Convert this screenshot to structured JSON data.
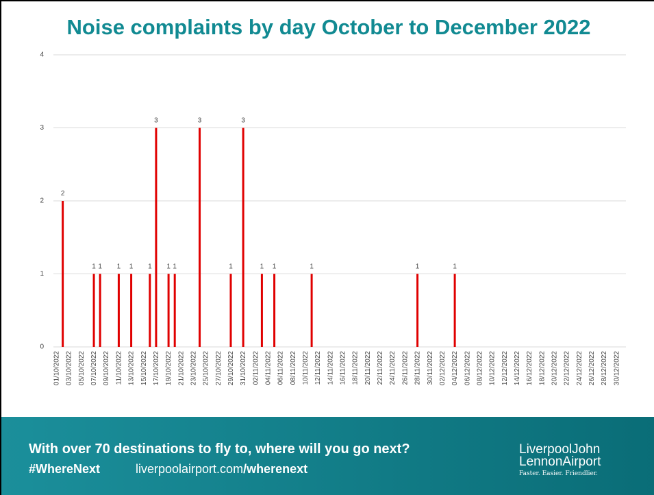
{
  "chart_data": {
    "type": "bar",
    "title": "Noise complaints by day October to December 2022",
    "categories": [
      "01/10/2022",
      null,
      "03/10/2022",
      null,
      "05/10/2022",
      null,
      "07/10/2022",
      null,
      "09/10/2022",
      null,
      "11/10/2022",
      null,
      "13/10/2022",
      null,
      "15/10/2022",
      null,
      "17/10/2022",
      null,
      "19/10/2022",
      null,
      "21/10/2022",
      null,
      "23/10/2022",
      null,
      "25/10/2022",
      null,
      "27/10/2022",
      null,
      "29/10/2022",
      null,
      "31/10/2022",
      null,
      "02/11/2022",
      null,
      "04/11/2022",
      null,
      "06/11/2022",
      null,
      "08/11/2022",
      null,
      "10/11/2022",
      null,
      "12/11/2022",
      null,
      "14/11/2022",
      null,
      "16/11/2022",
      null,
      "18/11/2022",
      null,
      "20/11/2022",
      null,
      "22/11/2022",
      null,
      "24/11/2022",
      null,
      "26/11/2022",
      null,
      "28/11/2022",
      null,
      "30/11/2022",
      null,
      "02/12/2022",
      null,
      "04/12/2022",
      null,
      "06/12/2022",
      null,
      "08/12/2022",
      null,
      "10/12/2022",
      null,
      "12/12/2022",
      null,
      "14/12/2022",
      null,
      "16/12/2022",
      null,
      "18/12/2022",
      null,
      "20/12/2022",
      null,
      "22/12/2022",
      null,
      "24/12/2022",
      null,
      "26/12/2022",
      null,
      "28/12/2022",
      null,
      "30/12/2022",
      null
    ],
    "values": [
      0,
      2,
      0,
      0,
      0,
      0,
      1,
      1,
      0,
      0,
      1,
      0,
      1,
      0,
      0,
      1,
      3,
      0,
      1,
      1,
      0,
      0,
      0,
      3,
      0,
      0,
      0,
      0,
      1,
      0,
      3,
      0,
      0,
      1,
      0,
      1,
      0,
      0,
      0,
      0,
      0,
      1,
      0,
      0,
      0,
      0,
      0,
      0,
      0,
      0,
      0,
      0,
      0,
      0,
      0,
      0,
      0,
      0,
      1,
      0,
      0,
      0,
      0,
      0,
      1,
      0,
      0,
      0,
      0,
      0,
      0,
      0,
      0,
      0,
      0,
      0,
      0,
      0,
      0,
      0,
      0,
      0,
      0,
      0,
      0,
      0,
      0,
      0,
      0,
      0,
      0,
      0
    ],
    "color": "#e00000",
    "ylim": [
      0,
      4
    ],
    "yticks": [
      0,
      1,
      2,
      3,
      4
    ],
    "grid": true
  },
  "footer": {
    "tagline": "With over 70 destinations to fly to, where will you go next?",
    "hashtag": "#WhereNext",
    "url_site": "liverpoolairport.com",
    "url_path": "/wherenext",
    "logo_line1": "LiverpoolJohn",
    "logo_line2": "LennonAirport",
    "logo_slogan": "Faster. Easier. Friendlier."
  }
}
